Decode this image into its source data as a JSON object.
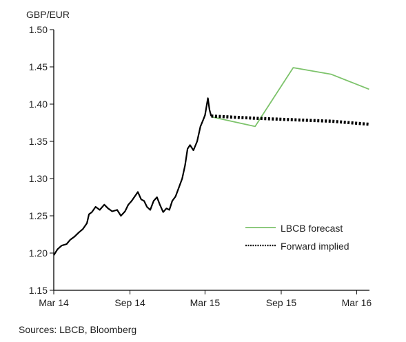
{
  "chart_data": {
    "type": "line",
    "ylabel": "GBP/EUR",
    "ylim": [
      1.15,
      1.5
    ],
    "yticks": [
      "1.15",
      "1.20",
      "1.25",
      "1.30",
      "1.35",
      "1.40",
      "1.45",
      "1.50"
    ],
    "xlim": [
      "2014-03",
      "2016-04"
    ],
    "xticks": [
      {
        "label": "Mar 14",
        "date": "2014-03"
      },
      {
        "label": "Sep 14",
        "date": "2014-09"
      },
      {
        "label": "Mar 15",
        "date": "2015-03"
      },
      {
        "label": "Sep 15",
        "date": "2015-09"
      },
      {
        "label": "Mar 16",
        "date": "2016-03"
      }
    ],
    "legend_position": "bottom-right",
    "series": [
      {
        "name": "",
        "color": "#000000",
        "style": "solid",
        "points": [
          [
            "2014-03-01",
            1.197
          ],
          [
            "2014-03-10",
            1.205
          ],
          [
            "2014-03-20",
            1.21
          ],
          [
            "2014-04-01",
            1.212
          ],
          [
            "2014-04-10",
            1.218
          ],
          [
            "2014-04-20",
            1.222
          ],
          [
            "2014-05-01",
            1.228
          ],
          [
            "2014-05-10",
            1.232
          ],
          [
            "2014-05-20",
            1.24
          ],
          [
            "2014-05-25",
            1.252
          ],
          [
            "2014-06-01",
            1.255
          ],
          [
            "2014-06-10",
            1.262
          ],
          [
            "2014-06-20",
            1.258
          ],
          [
            "2014-07-01",
            1.265
          ],
          [
            "2014-07-10",
            1.26
          ],
          [
            "2014-07-20",
            1.256
          ],
          [
            "2014-08-01",
            1.258
          ],
          [
            "2014-08-10",
            1.25
          ],
          [
            "2014-08-20",
            1.256
          ],
          [
            "2014-08-28",
            1.265
          ],
          [
            "2014-09-05",
            1.27
          ],
          [
            "2014-09-15",
            1.278
          ],
          [
            "2014-09-20",
            1.282
          ],
          [
            "2014-09-28",
            1.272
          ],
          [
            "2014-10-05",
            1.27
          ],
          [
            "2014-10-12",
            1.262
          ],
          [
            "2014-10-20",
            1.258
          ],
          [
            "2014-10-28",
            1.27
          ],
          [
            "2014-11-05",
            1.275
          ],
          [
            "2014-11-12",
            1.265
          ],
          [
            "2014-11-20",
            1.255
          ],
          [
            "2014-11-28",
            1.26
          ],
          [
            "2014-12-05",
            1.258
          ],
          [
            "2014-12-12",
            1.27
          ],
          [
            "2014-12-20",
            1.276
          ],
          [
            "2014-12-28",
            1.288
          ],
          [
            "2015-01-05",
            1.3
          ],
          [
            "2015-01-12",
            1.318
          ],
          [
            "2015-01-18",
            1.34
          ],
          [
            "2015-01-24",
            1.345
          ],
          [
            "2015-02-01",
            1.338
          ],
          [
            "2015-02-10",
            1.35
          ],
          [
            "2015-02-18",
            1.37
          ],
          [
            "2015-02-24",
            1.378
          ],
          [
            "2015-03-01",
            1.385
          ],
          [
            "2015-03-05",
            1.398
          ],
          [
            "2015-03-08",
            1.408
          ],
          [
            "2015-03-12",
            1.392
          ],
          [
            "2015-03-16",
            1.384
          ]
        ]
      },
      {
        "name": "LBCB forecast",
        "color": "#7dc36b",
        "style": "solid",
        "points": [
          [
            "2015-03-16",
            1.383
          ],
          [
            "2015-06-30",
            1.37
          ],
          [
            "2015-09-30",
            1.449
          ],
          [
            "2015-12-31",
            1.44
          ],
          [
            "2016-03-31",
            1.42
          ]
        ]
      },
      {
        "name": "Forward implied",
        "color": "#000000",
        "style": "dotted",
        "points": [
          [
            "2015-03-16",
            1.384
          ],
          [
            "2015-06-30",
            1.381
          ],
          [
            "2015-09-30",
            1.379
          ],
          [
            "2015-12-31",
            1.377
          ],
          [
            "2016-03-31",
            1.373
          ]
        ]
      }
    ]
  },
  "source": "Sources: LBCB, Bloomberg"
}
